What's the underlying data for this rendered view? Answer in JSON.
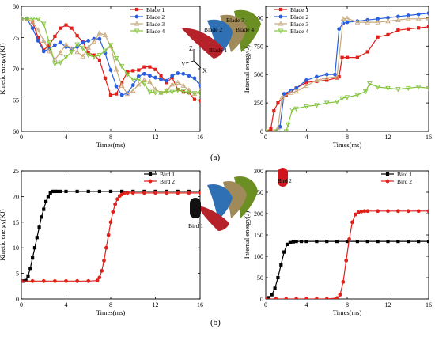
{
  "figure": {
    "label_a": "(a)",
    "label_b": "(b)"
  },
  "chart_data": [
    {
      "type": "line",
      "id": "a-kinetic",
      "xlabel": "Times(ms)",
      "ylabel": "Kinetic energy(KJ)",
      "xlim": [
        0,
        16
      ],
      "ylim": [
        60,
        80
      ],
      "xticks": [
        0,
        4,
        8,
        12,
        16
      ],
      "yticks": [
        60,
        65,
        70,
        75,
        80
      ],
      "legend_position": "top-right",
      "series": [
        {
          "name": "Blade 1",
          "color": "#e0201b",
          "marker": "square",
          "x": [
            0,
            0.5,
            1.0,
            1.5,
            2.0,
            2.5,
            3.0,
            3.5,
            4.0,
            4.5,
            5.0,
            5.5,
            6.0,
            6.5,
            7.0,
            7.5,
            8.0,
            8.5,
            9.0,
            9.5,
            10.0,
            10.5,
            11.0,
            11.5,
            12.0,
            12.5,
            13.0,
            13.5,
            14.0,
            14.5,
            15.0,
            15.5,
            16.0
          ],
          "y": [
            78,
            78,
            77.5,
            75,
            73,
            73.8,
            75.2,
            76.5,
            77,
            76.5,
            75.3,
            74.3,
            72.6,
            72.2,
            71.4,
            68.5,
            65.8,
            66.0,
            67.8,
            69.5,
            69.7,
            69.8,
            70.3,
            70.3,
            69.9,
            68.9,
            67.8,
            68.6,
            66.7,
            66.3,
            66.2,
            65.1,
            64.9
          ]
        },
        {
          "name": "Blade 2",
          "color": "#2a5fe0",
          "marker": "circle",
          "x": [
            0,
            0.5,
            1.0,
            1.5,
            2.0,
            2.5,
            3.0,
            3.5,
            4.0,
            4.5,
            5.0,
            5.5,
            6.0,
            6.5,
            7.0,
            7.5,
            8.0,
            8.5,
            9.0,
            9.5,
            10.0,
            10.5,
            11.0,
            11.5,
            12.0,
            12.5,
            13.0,
            13.5,
            14.0,
            14.5,
            15.0,
            15.5,
            16.0
          ],
          "y": [
            78,
            78,
            76.5,
            74.5,
            72.8,
            73.2,
            73.8,
            74.2,
            73.5,
            73.2,
            73.5,
            74.2,
            74.5,
            74.8,
            74.8,
            72.5,
            69.8,
            67.2,
            65.8,
            66.1,
            67.4,
            68.8,
            69.2,
            68.9,
            68.6,
            68.3,
            68.1,
            68.9,
            69.3,
            69.2,
            68.9,
            68.5,
            67.3
          ]
        },
        {
          "name": "Blade 3",
          "color": "#c9a97b",
          "marker": "triangle-up",
          "x": [
            0,
            0.5,
            1.0,
            1.5,
            2.0,
            2.5,
            3.0,
            3.5,
            4.0,
            4.5,
            5.0,
            5.5,
            6.0,
            6.5,
            7.0,
            7.5,
            8.0,
            8.5,
            9.0,
            9.5,
            10.0,
            10.5,
            11.0,
            11.5,
            12.0,
            12.5,
            13.0,
            13.5,
            14.0,
            14.5,
            15.0,
            15.5,
            16.0
          ],
          "y": [
            78,
            78,
            77.5,
            76.2,
            74.5,
            72.8,
            71.5,
            72.6,
            73.9,
            73.2,
            72.7,
            72.0,
            73.4,
            74.4,
            75.7,
            75.4,
            73.6,
            69.9,
            67.3,
            66.0,
            66.5,
            67.5,
            68.2,
            67.9,
            66.7,
            66.2,
            66.5,
            67.5,
            67.8,
            67.3,
            66.6,
            66.0,
            66.4
          ]
        },
        {
          "name": "Blade 4",
          "color": "#84c43c",
          "marker": "triangle-down",
          "x": [
            0,
            0.5,
            1.0,
            1.5,
            2.0,
            2.5,
            3.0,
            3.5,
            4.0,
            4.5,
            5.0,
            5.5,
            6.0,
            6.5,
            7.0,
            7.5,
            8.0,
            8.5,
            9.0,
            9.5,
            10.0,
            10.5,
            11.0,
            11.5,
            12.0,
            12.5,
            13.0,
            13.5,
            14.0,
            14.5,
            15.0,
            15.5,
            16.0
          ],
          "y": [
            78,
            78,
            78,
            78,
            77.2,
            74.2,
            70.8,
            71.0,
            71.9,
            72.7,
            73.9,
            73.3,
            72.2,
            71.9,
            72.2,
            72.9,
            73.8,
            71.7,
            70.4,
            69.1,
            68.3,
            68.3,
            67.6,
            66.3,
            66.2,
            66.1,
            66.4,
            66.3,
            66.6,
            66.4,
            66.2,
            66.1,
            66.1
          ]
        }
      ]
    },
    {
      "type": "line",
      "id": "a-internal",
      "xlabel": "Times(ms)",
      "ylabel": "Internal energy(J)",
      "xlim": [
        0,
        16
      ],
      "ylim": [
        0,
        1100
      ],
      "xticks": [
        0,
        4,
        8,
        12,
        16
      ],
      "yticks": [
        0,
        250,
        500,
        750,
        1000
      ],
      "legend_position": "top-left",
      "series": [
        {
          "name": "Blade 1",
          "color": "#e0201b",
          "marker": "square",
          "x": [
            0,
            0.5,
            0.8,
            1.2,
            2.0,
            3.0,
            4.0,
            5.0,
            6.0,
            7.0,
            7.2,
            7.5,
            8.0,
            9.0,
            10.0,
            11.0,
            12.0,
            13.0,
            14.0,
            15.0,
            16.0
          ],
          "y": [
            0,
            20,
            180,
            250,
            320,
            380,
            430,
            440,
            450,
            470,
            480,
            650,
            650,
            650,
            700,
            830,
            850,
            890,
            900,
            910,
            920
          ]
        },
        {
          "name": "Blade 2",
          "color": "#2a5fe0",
          "marker": "circle",
          "x": [
            0,
            1.0,
            1.4,
            1.8,
            2.5,
            3.0,
            4.0,
            5.0,
            6.0,
            6.8,
            7.2,
            7.6,
            8.0,
            9.0,
            10.0,
            11.0,
            12.0,
            13.0,
            14.0,
            15.0,
            16.0
          ],
          "y": [
            0,
            0,
            40,
            330,
            360,
            380,
            450,
            480,
            500,
            500,
            900,
            950,
            960,
            970,
            980,
            990,
            1000,
            1010,
            1020,
            1030,
            1040
          ]
        },
        {
          "name": "Blade 3",
          "color": "#c9a97b",
          "marker": "triangle-up",
          "x": [
            0,
            0.8,
            1.2,
            1.6,
            2.5,
            3.0,
            4.0,
            5.0,
            6.0,
            7.0,
            7.6,
            8.0,
            9.0,
            10.0,
            11.0,
            12.0,
            13.0,
            14.0,
            15.0,
            16.0
          ],
          "y": [
            0,
            0,
            30,
            300,
            340,
            350,
            400,
            450,
            470,
            480,
            990,
            995,
            960,
            960,
            960,
            970,
            980,
            990,
            990,
            995
          ]
        },
        {
          "name": "Blade 4",
          "color": "#84c43c",
          "marker": "triangle-down",
          "x": [
            0,
            1.0,
            2.0,
            2.2,
            2.6,
            3.0,
            4.0,
            5.0,
            6.0,
            7.0,
            7.5,
            8.0,
            9.0,
            9.8,
            10.2,
            11.0,
            12.0,
            13.0,
            14.0,
            15.0,
            16.0
          ],
          "y": [
            0,
            0,
            0,
            60,
            190,
            200,
            220,
            230,
            250,
            260,
            290,
            300,
            320,
            350,
            420,
            390,
            380,
            370,
            380,
            390,
            380
          ]
        }
      ]
    },
    {
      "type": "line",
      "id": "b-kinetic",
      "xlabel": "Times(ms)",
      "ylabel": "Kinetic energy(KJ)",
      "xlim": [
        0,
        16
      ],
      "ylim": [
        0,
        25
      ],
      "xticks": [
        0,
        4,
        8,
        12,
        16
      ],
      "yticks": [
        0,
        5,
        10,
        15,
        20,
        25
      ],
      "legend_position": "top-right",
      "series": [
        {
          "name": "Bird 1",
          "color": "#000000",
          "marker": "square",
          "x": [
            0,
            0.2,
            0.4,
            0.6,
            0.8,
            1.0,
            1.2,
            1.4,
            1.6,
            1.8,
            2.0,
            2.2,
            2.4,
            2.6,
            2.8,
            3.0,
            3.2,
            3.5,
            4.0,
            5.0,
            6.0,
            7.0,
            8.0,
            9.0,
            10.0,
            11.0,
            12.0,
            13.0,
            14.0,
            15.0,
            16.0
          ],
          "y": [
            3.5,
            3.5,
            3.6,
            4.5,
            6.0,
            8.0,
            10.0,
            12.0,
            14.0,
            16.0,
            17.5,
            19.0,
            20.0,
            20.7,
            21.0,
            21.0,
            21.0,
            21.0,
            21.0,
            21.0,
            21.0,
            21.0,
            21.0,
            21.0,
            21.0,
            21.0,
            21.0,
            21.0,
            21.0,
            21.0,
            21.0
          ]
        },
        {
          "name": "Bird 2",
          "color": "#e0201b",
          "marker": "circle",
          "x": [
            0,
            1.0,
            2.0,
            3.0,
            4.0,
            5.0,
            6.0,
            6.8,
            7.0,
            7.2,
            7.4,
            7.6,
            7.8,
            8.0,
            8.2,
            8.4,
            8.6,
            8.8,
            9.0,
            9.2,
            9.5,
            10.0,
            11.0,
            12.0,
            13.0,
            14.0,
            15.0,
            16.0
          ],
          "y": [
            3.5,
            3.5,
            3.5,
            3.5,
            3.5,
            3.5,
            3.5,
            3.6,
            4.2,
            5.5,
            7.5,
            10.0,
            12.5,
            15.0,
            17.0,
            18.5,
            19.5,
            20.1,
            20.4,
            20.6,
            20.7,
            20.7,
            20.7,
            20.7,
            20.7,
            20.7,
            20.7,
            20.7
          ]
        }
      ]
    },
    {
      "type": "line",
      "id": "b-internal",
      "xlabel": "Times(ms)",
      "ylabel": "Internal energy(J)",
      "xlim": [
        0,
        16
      ],
      "ylim": [
        0,
        300
      ],
      "xticks": [
        0,
        4,
        8,
        12,
        16
      ],
      "yticks": [
        0,
        50,
        100,
        150,
        200,
        250,
        300
      ],
      "legend_position": "top-right",
      "series": [
        {
          "name": "Bird 1",
          "color": "#000000",
          "marker": "square",
          "x": [
            0,
            0.3,
            0.6,
            0.9,
            1.2,
            1.5,
            1.8,
            2.1,
            2.4,
            2.7,
            3.0,
            3.5,
            4.0,
            5.0,
            6.0,
            7.0,
            8.0,
            9.0,
            10.0,
            11.0,
            12.0,
            13.0,
            14.0,
            15.0,
            16.0
          ],
          "y": [
            0,
            3,
            10,
            25,
            50,
            80,
            110,
            128,
            132,
            134,
            135,
            135,
            135,
            135,
            135,
            135,
            135,
            135,
            135,
            135,
            135,
            135,
            135,
            135,
            135
          ]
        },
        {
          "name": "Bird 2",
          "color": "#e0201b",
          "marker": "circle",
          "x": [
            0,
            1.0,
            2.0,
            3.0,
            4.0,
            5.0,
            6.0,
            7.0,
            7.3,
            7.6,
            7.9,
            8.2,
            8.5,
            8.8,
            9.1,
            9.4,
            9.7,
            10.0,
            11.0,
            12.0,
            13.0,
            14.0,
            15.0,
            16.0
          ],
          "y": [
            0,
            0,
            0,
            0,
            0,
            0,
            0,
            2,
            10,
            40,
            90,
            140,
            180,
            198,
            203,
            205,
            206,
            206,
            206,
            206,
            206,
            206,
            206,
            206
          ]
        }
      ]
    }
  ],
  "insets": {
    "a": {
      "labels": [
        "Blade 4",
        "Blade 3",
        "Blade 2",
        "Blade 1"
      ],
      "axes": [
        "Z",
        "Y",
        "X"
      ]
    },
    "b_kinetic": {
      "labels": [
        "Bird 1"
      ]
    },
    "b_internal": {
      "labels": [
        "Bird 2"
      ]
    }
  },
  "colors": {
    "blade1_inset": "#b5222a",
    "blade2_inset": "#2f6fb3",
    "blade3_inset": "#a08a5a",
    "blade4_inset": "#6b8f23",
    "bird_black": "#111111",
    "bird_red": "#d0151c"
  }
}
